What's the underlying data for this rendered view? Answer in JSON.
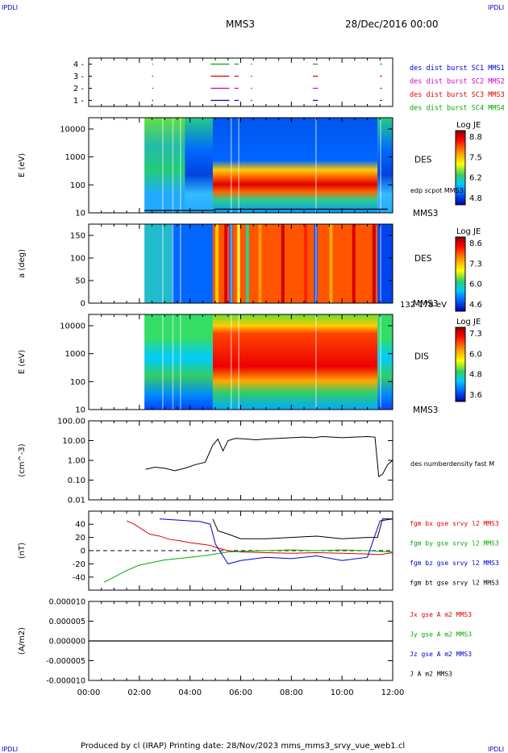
{
  "header": {
    "corner_left": "IPDLI",
    "corner_right": "IPDLI",
    "spacecraft": "MMS3",
    "date": "28/Dec/2016 00:00"
  },
  "footer": {
    "text": "Produced by cl (IRAP)   Printing date: 28/Nov/2023   mms_mms3_srvy_vue_web1.cl",
    "corner_left": "IPDLI",
    "corner_right": "IPDLI"
  },
  "time_axis": {
    "ticks": [
      "00:00",
      "02:00",
      "04:00",
      "06:00",
      "08:00",
      "10:00",
      "12:00"
    ],
    "start_hour": 0,
    "end_hour": 12
  },
  "colors": {
    "blue": "#0000cc",
    "magenta": "#cc00cc",
    "red": "#dd0000",
    "green": "#00aa00",
    "black": "#000000"
  },
  "chart_data": [
    {
      "type": "line",
      "panel": "burst",
      "yticks": [
        "1",
        "2",
        "3",
        "4"
      ],
      "ylim": [
        0.5,
        4.5
      ],
      "legend": [
        {
          "label": "des dist burst SC1 MMS1",
          "color": "#0000cc"
        },
        {
          "label": "des dist burst SC2 MMS2",
          "color": "#cc00cc"
        },
        {
          "label": "des dist burst SC3 MMS3",
          "color": "#dd0000"
        },
        {
          "label": "des dist burst SC4 MMS4",
          "color": "#00aa00"
        }
      ],
      "intervals_hours": [
        [
          2.5,
          2.52
        ],
        [
          4.82,
          5.55
        ],
        [
          5.75,
          5.92
        ],
        [
          6.4,
          6.45
        ],
        [
          8.85,
          9.05
        ],
        [
          11.5,
          11.58
        ]
      ]
    },
    {
      "type": "heatmap",
      "panel": "des_energy",
      "ylabel": "E (eV)",
      "ytick_labels": [
        "10000",
        "1000",
        "100",
        "10"
      ],
      "label": "DES",
      "sub_label": "MMS3",
      "overlay_label": "edp scpot MMS3",
      "colorbar": {
        "title": "Log JE",
        "ticks": [
          "8.8",
          "7.5",
          "6.2",
          "4.8"
        ]
      },
      "data_start_hour": 2.2,
      "peak_energy_start_hour": 4.9
    },
    {
      "type": "heatmap",
      "panel": "des_pitch",
      "ylabel": "a (deg)",
      "ytick_labels": [
        "150",
        "100",
        "50",
        "0"
      ],
      "label": "DES",
      "sub_label": "MMS3",
      "energy_range": "132-178 eV",
      "colorbar": {
        "title": "Log JE",
        "ticks": [
          "8.6",
          "7.3",
          "6.0",
          "4.6"
        ]
      }
    },
    {
      "type": "heatmap",
      "panel": "dis_energy",
      "ylabel": "E (eV)",
      "ytick_labels": [
        "10000",
        "1000",
        "100",
        "10"
      ],
      "label": "DIS",
      "sub_label": "MMS3",
      "colorbar": {
        "title": "Log JE",
        "ticks": [
          "7.3",
          "6.0",
          "4.8",
          "3.6"
        ]
      }
    },
    {
      "type": "line",
      "panel": "density",
      "ylabel": "(cm^-3)",
      "ytick_labels": [
        "100.00",
        "10.00",
        "1.00",
        "0.10",
        "0.01"
      ],
      "ylim": [
        0.01,
        100
      ],
      "scale": "log",
      "series": [
        {
          "name": "des numberdensity fast M",
          "color": "#000000"
        }
      ],
      "x": [
        2.25,
        2.6,
        3.0,
        3.4,
        3.8,
        4.2,
        4.6,
        4.9,
        5.1,
        5.3,
        5.5,
        5.8,
        6.2,
        6.6,
        7.0,
        7.5,
        8.0,
        8.5,
        8.9,
        9.2,
        9.6,
        10.0,
        10.5,
        11.0,
        11.3,
        11.45,
        11.6,
        11.8,
        12.0
      ],
      "values": [
        0.35,
        0.45,
        0.4,
        0.3,
        0.4,
        0.6,
        0.8,
        6.0,
        12,
        3,
        10,
        13,
        12,
        11,
        12,
        13,
        14,
        15,
        14,
        16,
        15,
        14,
        15,
        16,
        15,
        0.15,
        0.2,
        0.6,
        1.0
      ]
    },
    {
      "type": "line",
      "panel": "magnetic_field",
      "ylabel": "(nT)",
      "ytick_labels": [
        "40",
        "20",
        "0",
        "-20",
        "-40"
      ],
      "ylim": [
        -50,
        50
      ],
      "series": [
        {
          "name": "fgm bx gse srvy l2 MMS3",
          "color": "#dd0000",
          "x": [
            1.5,
            1.8,
            2.0,
            2.4,
            2.8,
            3.2,
            3.6,
            4.0,
            4.4,
            4.8,
            5.0,
            5.5,
            6.0,
            7.0,
            8.0,
            9.0,
            10.0,
            11.0,
            11.5,
            12.0
          ],
          "values": [
            45,
            40,
            35,
            25,
            22,
            17,
            15,
            12,
            10,
            8,
            5,
            0,
            -2,
            -3,
            -4,
            -3,
            -4,
            -5,
            -6,
            -3
          ]
        },
        {
          "name": "fgm by gse srvy l2 MMS3",
          "color": "#00aa00",
          "x": [
            0.6,
            1.0,
            1.5,
            2.0,
            2.5,
            3.0,
            3.5,
            4.0,
            4.5,
            5.0,
            5.5,
            6.0,
            7.0,
            8.0,
            9.0,
            10.0,
            11.0,
            11.5,
            12.0
          ],
          "values": [
            -48,
            -40,
            -30,
            -22,
            -18,
            -14,
            -12,
            -10,
            -8,
            -5,
            -2,
            -1,
            0,
            1,
            0,
            1,
            0,
            -1,
            -2
          ]
        },
        {
          "name": "fgm bz gse srvy l2 MMS3",
          "color": "#0000cc",
          "x": [
            2.8,
            3.2,
            3.6,
            4.0,
            4.4,
            4.8,
            5.0,
            5.5,
            6.0,
            7.0,
            8.0,
            9.0,
            10.0,
            11.0,
            11.5,
            12.0
          ],
          "values": [
            48,
            47,
            46,
            45,
            44,
            40,
            10,
            -20,
            -15,
            -10,
            -12,
            -8,
            -15,
            -10,
            45,
            48
          ]
        },
        {
          "name": "fgm bt gse srvy l2 MMS3",
          "color": "#000000",
          "x": [
            4.9,
            5.1,
            5.5,
            6.0,
            7.0,
            8.0,
            9.0,
            10.0,
            11.0,
            11.4,
            11.6,
            12.0
          ],
          "values": [
            48,
            30,
            25,
            18,
            18,
            20,
            22,
            18,
            20,
            20,
            48,
            48
          ]
        }
      ],
      "zero_line": true
    },
    {
      "type": "line",
      "panel": "current",
      "ylabel": "(A/m2)",
      "ytick_labels": [
        "0.000010",
        "0.000005",
        "0.000000",
        "-0.000005",
        "-0.000010"
      ],
      "ylim": [
        -1e-05,
        1e-05
      ],
      "series": [
        {
          "name": "Jx gse A m2 MMS3",
          "color": "#dd0000"
        },
        {
          "name": "Jy gse A m2 MMS3",
          "color": "#00aa00"
        },
        {
          "name": "Jz gse A m2 MMS3",
          "color": "#0000cc"
        },
        {
          "name": "J A m2 MMS3",
          "color": "#000000"
        }
      ],
      "x": [
        0,
        12
      ],
      "values": [
        0,
        0
      ]
    }
  ]
}
